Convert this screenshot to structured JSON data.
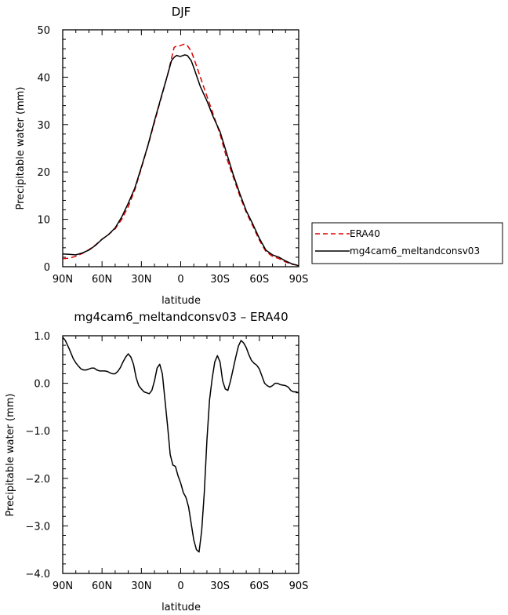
{
  "chart_data": [
    {
      "type": "line",
      "title": "DJF",
      "xlabel": "latitude",
      "ylabel": "Precipitable water (mm)",
      "xlim": [
        90,
        -90
      ],
      "ylim": [
        0,
        50
      ],
      "xtick_values": [
        90,
        60,
        30,
        0,
        -30,
        -60,
        -90
      ],
      "xtick_labels": [
        "90N",
        "60N",
        "30N",
        "0",
        "30S",
        "60S",
        "90S"
      ],
      "ytick_values": [
        0,
        10,
        20,
        30,
        40,
        50
      ],
      "ytick_labels": [
        "0",
        "10",
        "20",
        "30",
        "40",
        "50"
      ],
      "legend": {
        "placement": "right"
      },
      "series": [
        {
          "name": "ERA40",
          "color": "#dd0000",
          "dash": true,
          "x": [
            90,
            85,
            80,
            75,
            70,
            65,
            60,
            55,
            50,
            45,
            40,
            35,
            30,
            25,
            20,
            15,
            10,
            7,
            5,
            3,
            1,
            0,
            -3,
            -5,
            -8,
            -10,
            -15,
            -20,
            -25,
            -30,
            -35,
            -40,
            -45,
            -50,
            -55,
            -60,
            -65,
            -70,
            -75,
            -80,
            -85,
            -90
          ],
          "y": [
            1.7,
            1.8,
            2.2,
            2.8,
            3.6,
            4.6,
            5.8,
            6.8,
            8.0,
            10.0,
            12.7,
            16.2,
            20.8,
            25.5,
            30.5,
            35.5,
            40.5,
            44.0,
            46.3,
            46.6,
            46.6,
            46.7,
            47.0,
            46.7,
            45.5,
            44.0,
            40.0,
            36.0,
            32.0,
            28.0,
            23.0,
            19.0,
            15.0,
            11.5,
            8.6,
            5.6,
            3.2,
            2.2,
            1.7,
            1.0,
            0.5,
            0.3
          ]
        },
        {
          "name": "mg4cam6_meltandconsv03",
          "color": "#000000",
          "dash": false,
          "x": [
            90,
            85,
            80,
            75,
            70,
            65,
            60,
            55,
            50,
            45,
            40,
            35,
            30,
            25,
            20,
            15,
            10,
            7,
            5,
            3,
            1,
            0,
            -3,
            -5,
            -8,
            -10,
            -15,
            -20,
            -25,
            -30,
            -35,
            -40,
            -45,
            -50,
            -55,
            -60,
            -65,
            -70,
            -75,
            -80,
            -85,
            -90
          ],
          "y": [
            2.7,
            2.6,
            2.5,
            2.9,
            3.5,
            4.5,
            5.8,
            6.8,
            8.2,
            10.5,
            13.4,
            16.6,
            21.0,
            25.6,
            30.8,
            35.7,
            40.5,
            43.5,
            44.2,
            44.6,
            44.4,
            44.4,
            44.7,
            44.6,
            43.5,
            42.0,
            38.0,
            35.0,
            31.5,
            28.5,
            24.0,
            19.5,
            15.5,
            11.8,
            9.0,
            6.0,
            3.5,
            2.5,
            2.0,
            1.2,
            0.6,
            0.2
          ]
        }
      ]
    },
    {
      "type": "line",
      "title": "mg4cam6_meltandconsv03 – ERA40",
      "xlabel": "latitude",
      "ylabel": "Precipitable water (mm)",
      "xlim": [
        90,
        -90
      ],
      "ylim": [
        -4.0,
        1.0
      ],
      "xtick_values": [
        90,
        60,
        30,
        0,
        -30,
        -60,
        -90
      ],
      "xtick_labels": [
        "90N",
        "60N",
        "30N",
        "0",
        "30S",
        "60S",
        "90S"
      ],
      "ytick_values": [
        1.0,
        0.0,
        -1.0,
        -2.0,
        -3.0,
        -4.0
      ],
      "ytick_labels": [
        "1.0",
        "0.0",
        "−1.0",
        "−2.0",
        "−3.0",
        "−4.0"
      ],
      "series": [
        {
          "name": "",
          "color": "#000000",
          "dash": false,
          "x": [
            90,
            88,
            85,
            82,
            80,
            78,
            76,
            74,
            72,
            70,
            68,
            66,
            64,
            62,
            60,
            58,
            56,
            54,
            52,
            50,
            48,
            46,
            44,
            42,
            40,
            38,
            36,
            34,
            32,
            30,
            28,
            26,
            24,
            22,
            20,
            18,
            16,
            14,
            12,
            10,
            8,
            6,
            4,
            2,
            0,
            -2,
            -4,
            -6,
            -8,
            -10,
            -12,
            -14,
            -16,
            -18,
            -20,
            -22,
            -24,
            -26,
            -28,
            -30,
            -32,
            -34,
            -36,
            -38,
            -40,
            -42,
            -44,
            -46,
            -48,
            -50,
            -52,
            -54,
            -56,
            -58,
            -60,
            -62,
            -64,
            -66,
            -68,
            -70,
            -72,
            -74,
            -76,
            -78,
            -80,
            -82,
            -84,
            -86,
            -88,
            -90
          ],
          "y": [
            0.97,
            0.9,
            0.72,
            0.52,
            0.43,
            0.36,
            0.3,
            0.28,
            0.28,
            0.3,
            0.32,
            0.32,
            0.28,
            0.26,
            0.26,
            0.26,
            0.25,
            0.22,
            0.2,
            0.2,
            0.25,
            0.33,
            0.45,
            0.55,
            0.62,
            0.55,
            0.4,
            0.12,
            -0.05,
            -0.12,
            -0.18,
            -0.2,
            -0.22,
            -0.15,
            0.05,
            0.32,
            0.4,
            0.2,
            -0.35,
            -0.9,
            -1.5,
            -1.72,
            -1.75,
            -1.95,
            -2.1,
            -2.3,
            -2.4,
            -2.6,
            -2.95,
            -3.3,
            -3.5,
            -3.55,
            -3.1,
            -2.3,
            -1.2,
            -0.35,
            0.1,
            0.45,
            0.58,
            0.45,
            0.05,
            -0.12,
            -0.15,
            0.05,
            0.3,
            0.55,
            0.78,
            0.9,
            0.85,
            0.75,
            0.6,
            0.48,
            0.42,
            0.38,
            0.3,
            0.15,
            0.0,
            -0.05,
            -0.08,
            -0.05,
            0.0,
            0.0,
            -0.03,
            -0.04,
            -0.05,
            -0.08,
            -0.15,
            -0.18,
            -0.18,
            -0.2
          ]
        }
      ]
    }
  ]
}
